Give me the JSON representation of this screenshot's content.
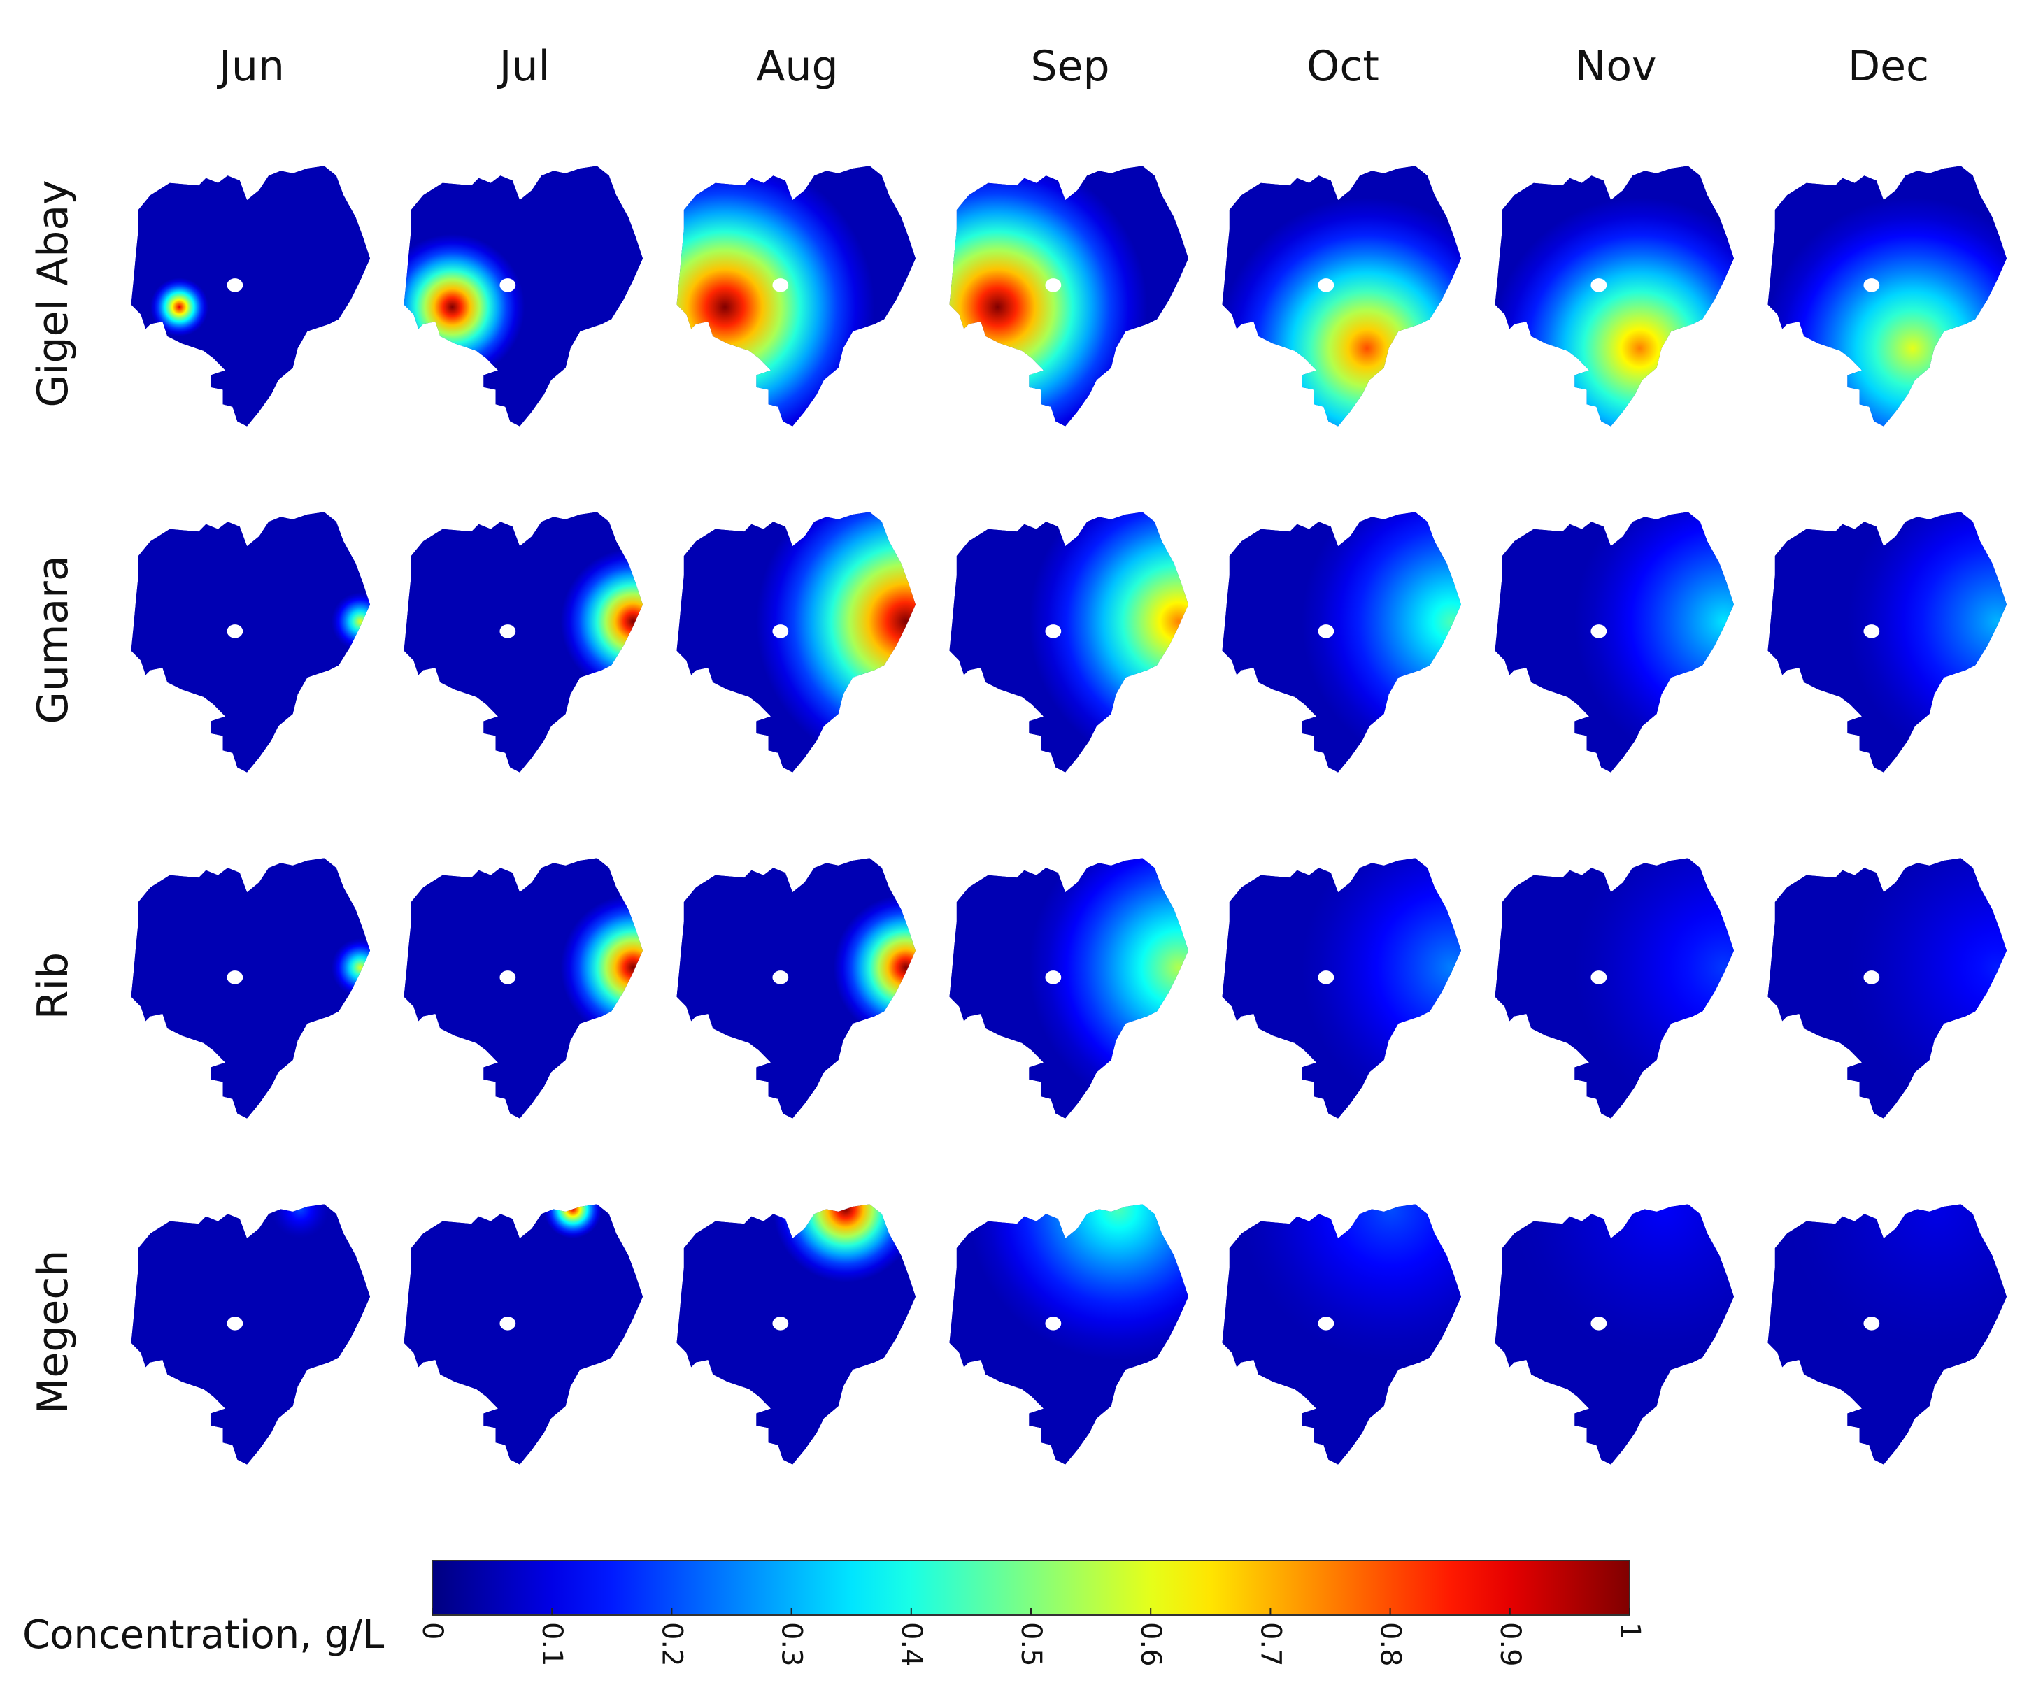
{
  "chart_data": {
    "type": "heatmap",
    "title": "",
    "columns": [
      "Jun",
      "Jul",
      "Aug",
      "Sep",
      "Oct",
      "Nov",
      "Dec"
    ],
    "rows": [
      "Gigel Abay",
      "Gumara",
      "Rib",
      "Megech"
    ],
    "background_level": 0.05,
    "panels": [
      [
        {
          "peak": 0.9,
          "hotspot": "southwest",
          "spread": "small"
        },
        {
          "peak": 1.0,
          "hotspot": "southwest",
          "spread": "medium"
        },
        {
          "peak": 1.0,
          "hotspot": "southwest",
          "spread": "large"
        },
        {
          "peak": 1.0,
          "hotspot": "southwest",
          "spread": "large"
        },
        {
          "peak": 0.8,
          "hotspot": "south",
          "spread": "large"
        },
        {
          "peak": 0.75,
          "hotspot": "south",
          "spread": "large"
        },
        {
          "peak": 0.6,
          "hotspot": "south",
          "spread": "large"
        }
      ],
      [
        {
          "peak": 0.6,
          "hotspot": "east",
          "spread": "small"
        },
        {
          "peak": 1.0,
          "hotspot": "east",
          "spread": "medium"
        },
        {
          "peak": 1.0,
          "hotspot": "east",
          "spread": "large"
        },
        {
          "peak": 0.75,
          "hotspot": "east",
          "spread": "large"
        },
        {
          "peak": 0.45,
          "hotspot": "east",
          "spread": "large"
        },
        {
          "peak": 0.35,
          "hotspot": "east",
          "spread": "large"
        },
        {
          "peak": 0.3,
          "hotspot": "east",
          "spread": "large"
        }
      ],
      [
        {
          "peak": 0.6,
          "hotspot": "east",
          "spread": "small"
        },
        {
          "peak": 1.0,
          "hotspot": "east",
          "spread": "medium"
        },
        {
          "peak": 1.0,
          "hotspot": "east",
          "spread": "medium"
        },
        {
          "peak": 0.55,
          "hotspot": "east",
          "spread": "large"
        },
        {
          "peak": 0.25,
          "hotspot": "east",
          "spread": "large"
        },
        {
          "peak": 0.18,
          "hotspot": "east",
          "spread": "large"
        },
        {
          "peak": 0.15,
          "hotspot": "east",
          "spread": "large"
        }
      ],
      [
        {
          "peak": 0.2,
          "hotspot": "north",
          "spread": "small"
        },
        {
          "peak": 0.9,
          "hotspot": "north",
          "spread": "small"
        },
        {
          "peak": 1.0,
          "hotspot": "north",
          "spread": "medium"
        },
        {
          "peak": 0.45,
          "hotspot": "north",
          "spread": "large"
        },
        {
          "peak": 0.2,
          "hotspot": "north",
          "spread": "large"
        },
        {
          "peak": 0.12,
          "hotspot": "north",
          "spread": "large"
        },
        {
          "peak": 0.1,
          "hotspot": "north",
          "spread": "large"
        }
      ]
    ],
    "colorbar": {
      "label": "Concentration, g/L",
      "range": [
        0,
        1
      ],
      "colormap": "jet",
      "ticks": [
        "0",
        "0.1",
        "0.2",
        "0.3",
        "0.4",
        "0.5",
        "0.6",
        "0.7",
        "0.8",
        "0.9",
        "1"
      ]
    }
  }
}
